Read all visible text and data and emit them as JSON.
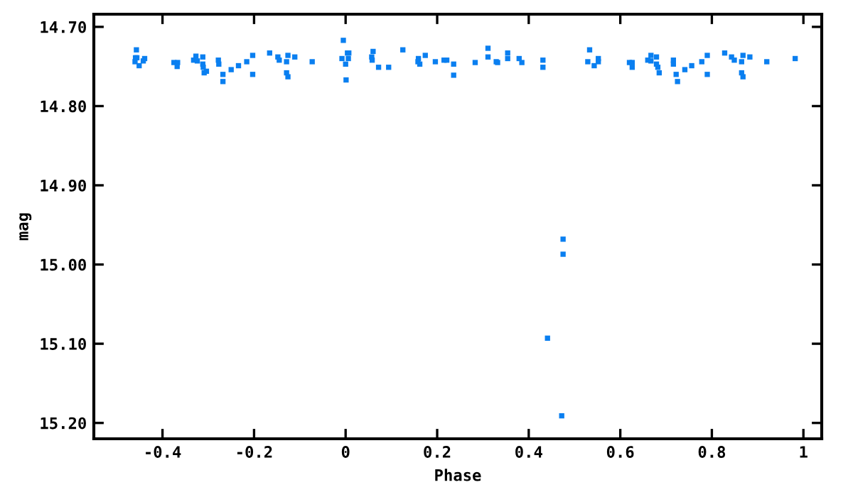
{
  "chart_data": {
    "type": "scatter",
    "xlabel": "Phase",
    "ylabel": "mag",
    "marker": "square",
    "grid": false,
    "legend": false,
    "xlim": [
      -0.55,
      1.04
    ],
    "ylim": [
      15.22,
      14.684
    ],
    "xticks": [
      {
        "value": -0.4,
        "label": "-0.4"
      },
      {
        "value": -0.2,
        "label": "-0.2"
      },
      0,
      0.2,
      0.4,
      0.6,
      0.8,
      1
    ],
    "yticks": [
      {
        "value": 14.7,
        "label": "14.70"
      },
      {
        "value": 14.8,
        "label": "14.80"
      },
      {
        "value": 14.9,
        "label": "14.90"
      },
      {
        "value": 15.0,
        "label": "15.00"
      },
      {
        "value": 15.1,
        "label": "15.10"
      },
      {
        "value": 15.2,
        "label": "15.20"
      }
    ],
    "series": [
      {
        "color": "#0a7ff0",
        "x": [
          -0.457,
          -0.459,
          -0.46,
          -0.456,
          -0.451,
          -0.442,
          -0.439,
          -0.375,
          -0.367,
          -0.368,
          -0.332,
          -0.327,
          -0.324,
          -0.312,
          -0.312,
          -0.311,
          -0.309,
          -0.304,
          -0.278,
          -0.277,
          -0.268,
          -0.268,
          -0.25,
          -0.234,
          -0.216,
          -0.203,
          -0.203,
          -0.166,
          -0.148,
          -0.145,
          -0.129,
          -0.126,
          -0.129,
          -0.126,
          -0.111,
          -0.073,
          -0.005,
          -0.008,
          0.004,
          0.007,
          0.006,
          0.0,
          0.001,
          0.06,
          0.057,
          0.058,
          0.072,
          0.094,
          0.125,
          0.159,
          0.158,
          0.162,
          0.174,
          0.196,
          0.215,
          0.221,
          0.236,
          0.236,
          0.283,
          0.311,
          0.311,
          0.329,
          0.332,
          0.354,
          0.354,
          0.379,
          0.385,
          0.431,
          0.431,
          0.475,
          0.475,
          0.441,
          0.472,
          0.533,
          0.529,
          0.543,
          0.552,
          0.552,
          0.62,
          0.626,
          0.626,
          0.66,
          0.667,
          0.667,
          0.679,
          0.679,
          0.682,
          0.685,
          0.716,
          0.716,
          0.722,
          0.725,
          0.741,
          0.756,
          0.778,
          0.79,
          0.79,
          0.828,
          0.843,
          0.849,
          0.865,
          0.868,
          0.865,
          0.868,
          0.883,
          0.92,
          0.982
        ],
        "values": [
          14.729,
          14.739,
          14.744,
          14.739,
          14.749,
          14.743,
          14.74,
          14.745,
          14.745,
          14.75,
          14.742,
          14.737,
          14.743,
          14.738,
          14.747,
          14.751,
          14.758,
          14.756,
          14.742,
          14.747,
          14.76,
          14.769,
          14.754,
          14.749,
          14.744,
          14.736,
          14.76,
          14.733,
          14.738,
          14.742,
          14.744,
          14.736,
          14.758,
          14.763,
          14.738,
          14.744,
          14.717,
          14.74,
          14.733,
          14.733,
          14.74,
          14.747,
          14.767,
          14.731,
          14.738,
          14.742,
          14.751,
          14.751,
          14.729,
          14.74,
          14.744,
          14.747,
          14.736,
          14.744,
          14.742,
          14.742,
          14.747,
          14.761,
          14.745,
          14.727,
          14.738,
          14.744,
          14.745,
          14.733,
          14.74,
          14.74,
          14.745,
          14.742,
          14.751,
          14.968,
          14.987,
          15.093,
          15.191,
          14.729,
          14.744,
          14.749,
          14.74,
          14.744,
          14.745,
          14.745,
          14.751,
          14.742,
          14.736,
          14.743,
          14.738,
          14.747,
          14.751,
          14.758,
          14.742,
          14.747,
          14.76,
          14.769,
          14.754,
          14.749,
          14.744,
          14.736,
          14.76,
          14.733,
          14.738,
          14.742,
          14.744,
          14.736,
          14.758,
          14.763,
          14.738,
          14.744,
          14.74
        ]
      }
    ]
  }
}
